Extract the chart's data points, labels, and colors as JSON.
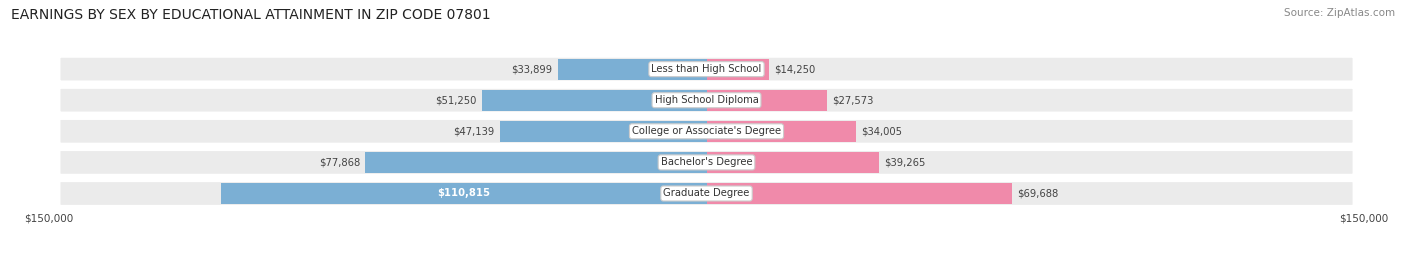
{
  "title": "EARNINGS BY SEX BY EDUCATIONAL ATTAINMENT IN ZIP CODE 07801",
  "source": "Source: ZipAtlas.com",
  "categories": [
    "Less than High School",
    "High School Diploma",
    "College or Associate's Degree",
    "Bachelor's Degree",
    "Graduate Degree"
  ],
  "male_values": [
    33899,
    51250,
    47139,
    77868,
    110815
  ],
  "female_values": [
    14250,
    27573,
    34005,
    39265,
    69688
  ],
  "max_val": 150000,
  "male_color": "#7bafd4",
  "female_color": "#f08aaa",
  "row_bg_color": "#ebebeb",
  "title_fontsize": 10,
  "source_fontsize": 7.5,
  "bar_height": 0.68
}
